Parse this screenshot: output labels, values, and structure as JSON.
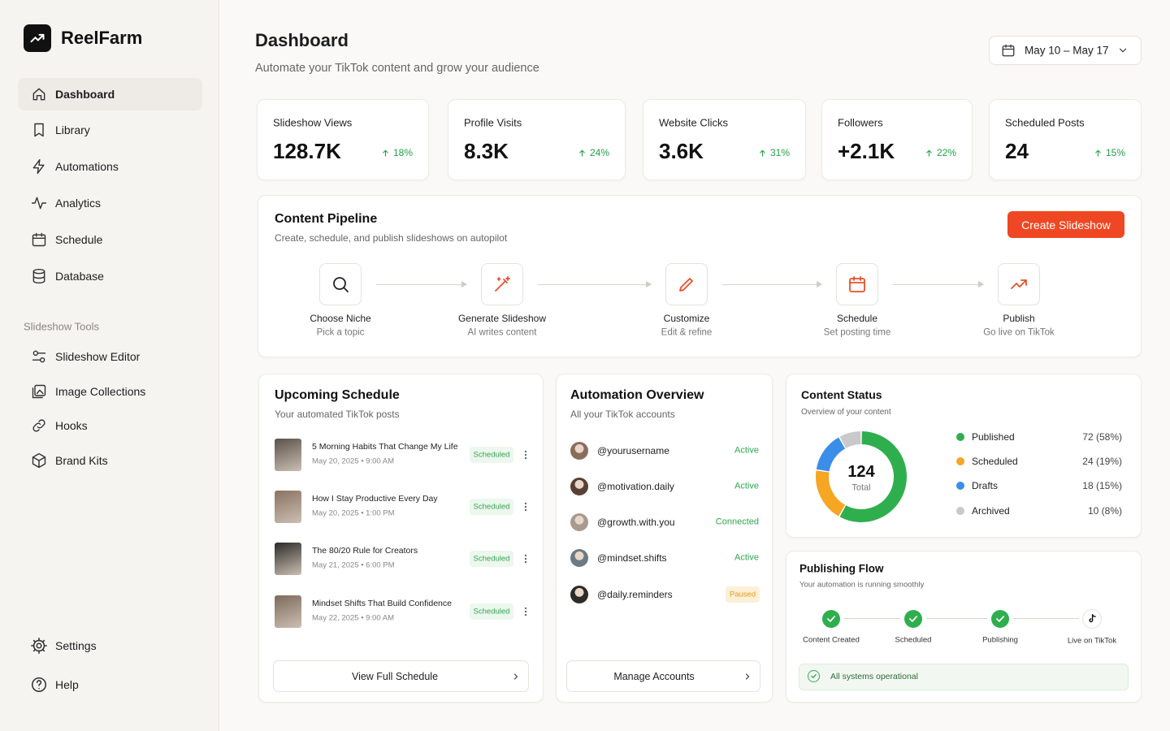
{
  "sidebar": {
    "brand": "ReelFarm",
    "nav": [
      "Dashboard",
      "Library",
      "Automations",
      "Analytics",
      "Schedule",
      "Database"
    ],
    "tools_title": "Slideshow Tools",
    "tools": [
      "Slideshow Editor",
      "Image Collections",
      "Hooks",
      "Brand Kits"
    ],
    "footer": [
      "Settings",
      "Help"
    ]
  },
  "header": {
    "title": "Dashboard",
    "subtitle": "Automate your TikTok content and grow your audience",
    "date_range": "May 10 – May 17"
  },
  "stats": [
    {
      "label": "Slideshow Views",
      "value": "128.7K",
      "change": "18%"
    },
    {
      "label": "Profile Visits",
      "value": "8.3K",
      "change": "24%"
    },
    {
      "label": "Website Clicks",
      "value": "3.6K",
      "change": "31%"
    },
    {
      "label": "Followers",
      "value": "+2.1K",
      "change": "22%"
    },
    {
      "label": "Scheduled Posts",
      "value": "24",
      "change": "15%"
    }
  ],
  "pipeline": {
    "title": "Content Pipeline",
    "subtitle": "Create, schedule, and publish slideshows on autopilot",
    "button": "Create Slideshow",
    "steps": [
      {
        "label": "Choose Niche",
        "sub": "Pick a topic"
      },
      {
        "label": "Generate Slideshow",
        "sub": "AI writes content"
      },
      {
        "label": "Customize",
        "sub": "Edit & refine"
      },
      {
        "label": "Schedule",
        "sub": "Set posting time"
      },
      {
        "label": "Publish",
        "sub": "Go live on TikTok"
      }
    ]
  },
  "schedule": {
    "title": "Upcoming Schedule",
    "subtitle": "Your automated TikTok posts",
    "items": [
      {
        "title": "5 Morning Habits That Change My Life",
        "date": "May 20, 2025 • 9:00 AM",
        "status": "Scheduled"
      },
      {
        "title": "How I Stay Productive Every Day",
        "date": "May 20, 2025 • 1:00 PM",
        "status": "Scheduled"
      },
      {
        "title": "The 80/20 Rule for Creators",
        "date": "May 21, 2025 • 6:00 PM",
        "status": "Scheduled"
      },
      {
        "title": "Mindset Shifts That Build Confidence",
        "date": "May 22, 2025 • 9:00 AM",
        "status": "Scheduled"
      }
    ],
    "button": "View Full Schedule"
  },
  "automation": {
    "title": "Automation Overview",
    "subtitle": "All your TikTok accounts",
    "accounts": [
      {
        "handle": "@yourusername",
        "status": "Active"
      },
      {
        "handle": "@motivation.daily",
        "status": "Active"
      },
      {
        "handle": "@growth.with.you",
        "status": "Connected"
      },
      {
        "handle": "@mindset.shifts",
        "status": "Active"
      },
      {
        "handle": "@daily.reminders",
        "status": "Paused"
      }
    ],
    "button": "Manage Accounts"
  },
  "content_status": {
    "title": "Content Status",
    "subtitle": "Overview of your content",
    "total": 124,
    "total_label": "Total",
    "names": [
      "Published",
      "Scheduled",
      "Drafts",
      "Archived"
    ],
    "values": [
      72,
      24,
      18,
      10
    ],
    "value_labels": [
      "72 (58%)",
      "24 (19%)",
      "18 (15%)",
      "10 (8%)"
    ],
    "colors": [
      "#2fae4e",
      "#f5a623",
      "#3b8ee8",
      "#c9c9c9"
    ]
  },
  "publishing_flow": {
    "title": "Publishing Flow",
    "subtitle": "Your automation is running smoothly",
    "steps": [
      "Content Created",
      "Scheduled",
      "Publishing",
      "Live on TikTok"
    ],
    "status": "All systems operational"
  }
}
